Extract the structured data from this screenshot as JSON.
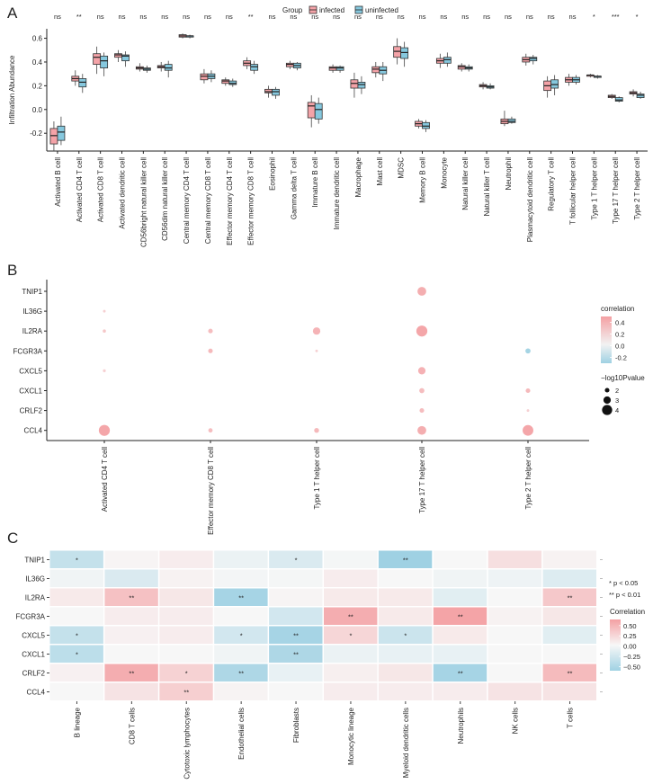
{
  "panel_labels": {
    "a": "A",
    "b": "B",
    "c": "C"
  },
  "colors": {
    "infected": "#f4a3a8",
    "uninfected": "#86c8de",
    "positive": "#f4a0a3",
    "negative": "#9fd1e3",
    "neutral": "#f7f7f7"
  },
  "chart_data": [
    {
      "type": "box",
      "panel": "A",
      "ylabel": "Infiltration Abundance",
      "ylim": [
        -0.35,
        0.68
      ],
      "yticks": [
        -0.2,
        0.0,
        0.2,
        0.4,
        0.6
      ],
      "ytick_labels": [
        "-0.2",
        "0.0",
        "0.2",
        "0.4",
        "0.6"
      ],
      "legend": {
        "title": "Group",
        "entries": [
          "infected",
          "uninfected"
        ],
        "position": "top"
      },
      "categories": [
        "Activated B cell",
        "Activated CD4 T cell",
        "Activated CD8 T cell",
        "Activated dendritic cell",
        "CD56bright natural killer cell",
        "CD56dim natural killer cell",
        "Central memory CD4 T cell",
        "Central memory CD8 T cell",
        "Effector memory CD4 T cell",
        "Effector memory CD8 T cell",
        "Eosinophil",
        "Gamma delta T cell",
        "Immature  B cell",
        "Immature dendritic cell",
        "Macrophage",
        "Mast cell",
        "MDSC",
        "Memory B cell",
        "Monocyte",
        "Natural killer cell",
        "Natural killer T cell",
        "Neutrophil",
        "Plasmacytoid dendritic cell",
        "Regulatory T cell",
        "T follicular helper cell",
        "Type 1 T helper cell",
        "Type 17 T helper cell",
        "Type 2 T helper cell"
      ],
      "significance": [
        "ns",
        "**",
        "ns",
        "ns",
        "ns",
        "ns",
        "ns",
        "ns",
        "ns",
        "**",
        "ns",
        "ns",
        "ns",
        "ns",
        "ns",
        "ns",
        "ns",
        "ns",
        "ns",
        "ns",
        "ns",
        "ns",
        "ns",
        "ns",
        "ns",
        "*",
        "***",
        "*"
      ],
      "series": [
        {
          "name": "infected",
          "boxes": [
            [
              -0.35,
              -0.29,
              -0.22,
              -0.16,
              -0.1
            ],
            [
              0.2,
              0.24,
              0.26,
              0.28,
              0.33
            ],
            [
              0.3,
              0.38,
              0.44,
              0.47,
              0.53
            ],
            [
              0.4,
              0.44,
              0.46,
              0.47,
              0.5
            ],
            [
              0.32,
              0.34,
              0.35,
              0.36,
              0.39
            ],
            [
              0.32,
              0.35,
              0.36,
              0.37,
              0.4
            ],
            [
              0.6,
              0.61,
              0.62,
              0.63,
              0.64
            ],
            [
              0.22,
              0.25,
              0.28,
              0.3,
              0.34
            ],
            [
              0.2,
              0.22,
              0.24,
              0.25,
              0.27
            ],
            [
              0.34,
              0.37,
              0.39,
              0.41,
              0.44
            ],
            [
              0.1,
              0.14,
              0.15,
              0.17,
              0.2
            ],
            [
              0.34,
              0.36,
              0.38,
              0.39,
              0.41
            ],
            [
              -0.15,
              -0.07,
              0.03,
              0.06,
              0.12
            ],
            [
              0.31,
              0.33,
              0.35,
              0.36,
              0.38
            ],
            [
              0.1,
              0.18,
              0.22,
              0.25,
              0.31
            ],
            [
              0.27,
              0.31,
              0.34,
              0.36,
              0.4
            ],
            [
              0.38,
              0.44,
              0.49,
              0.53,
              0.6
            ],
            [
              -0.16,
              -0.14,
              -0.12,
              -0.1,
              -0.08
            ],
            [
              0.35,
              0.39,
              0.41,
              0.43,
              0.47
            ],
            [
              0.32,
              0.34,
              0.36,
              0.37,
              0.39
            ],
            [
              0.17,
              0.19,
              0.2,
              0.21,
              0.23
            ],
            [
              -0.14,
              -0.12,
              -0.1,
              -0.08,
              -0.01
            ],
            [
              0.37,
              0.4,
              0.42,
              0.44,
              0.47
            ],
            [
              0.1,
              0.16,
              0.2,
              0.24,
              0.28
            ],
            [
              0.2,
              0.23,
              0.25,
              0.27,
              0.3
            ],
            [
              0.27,
              0.28,
              0.29,
              0.29,
              0.3
            ],
            [
              0.09,
              0.1,
              0.11,
              0.12,
              0.13
            ],
            [
              0.11,
              0.13,
              0.14,
              0.15,
              0.17
            ]
          ]
        },
        {
          "name": "uninfected",
          "boxes": [
            [
              -0.3,
              -0.26,
              -0.19,
              -0.14,
              -0.06
            ],
            [
              0.14,
              0.19,
              0.23,
              0.26,
              0.3
            ],
            [
              0.28,
              0.35,
              0.41,
              0.45,
              0.48
            ],
            [
              0.36,
              0.41,
              0.45,
              0.46,
              0.49
            ],
            [
              0.31,
              0.33,
              0.34,
              0.35,
              0.37
            ],
            [
              0.27,
              0.33,
              0.35,
              0.38,
              0.41
            ],
            [
              0.6,
              0.61,
              0.62,
              0.62,
              0.63
            ],
            [
              0.23,
              0.26,
              0.28,
              0.3,
              0.33
            ],
            [
              0.19,
              0.21,
              0.22,
              0.24,
              0.26
            ],
            [
              0.3,
              0.33,
              0.36,
              0.38,
              0.41
            ],
            [
              0.09,
              0.12,
              0.15,
              0.17,
              0.19
            ],
            [
              0.33,
              0.35,
              0.37,
              0.39,
              0.4
            ],
            [
              -0.12,
              -0.08,
              0.0,
              0.05,
              0.1
            ],
            [
              0.31,
              0.33,
              0.35,
              0.36,
              0.37
            ],
            [
              0.13,
              0.18,
              0.21,
              0.23,
              0.28
            ],
            [
              0.24,
              0.3,
              0.33,
              0.36,
              0.4
            ],
            [
              0.36,
              0.43,
              0.48,
              0.52,
              0.57
            ],
            [
              -0.19,
              -0.16,
              -0.14,
              -0.11,
              -0.09
            ],
            [
              0.36,
              0.39,
              0.42,
              0.44,
              0.48
            ],
            [
              0.32,
              0.34,
              0.35,
              0.36,
              0.38
            ],
            [
              0.17,
              0.18,
              0.19,
              0.2,
              0.22
            ],
            [
              -0.12,
              -0.11,
              -0.1,
              -0.08,
              -0.06
            ],
            [
              0.38,
              0.41,
              0.43,
              0.44,
              0.46
            ],
            [
              0.12,
              0.18,
              0.21,
              0.25,
              0.29
            ],
            [
              0.21,
              0.23,
              0.25,
              0.27,
              0.29
            ],
            [
              0.26,
              0.27,
              0.28,
              0.28,
              0.29
            ],
            [
              0.06,
              0.07,
              0.08,
              0.1,
              0.11
            ],
            [
              0.09,
              0.1,
              0.12,
              0.13,
              0.15
            ]
          ]
        }
      ]
    },
    {
      "type": "scatter",
      "panel": "B",
      "subtype": "dot-plot",
      "x_categories": [
        "Activated CD4 T cell",
        "Effector memory CD8 T cell",
        "Type 1 T helper cell",
        "Type 17 T helper cell",
        "Type 2 T helper cell"
      ],
      "y_categories": [
        "TNIP1",
        "IL36G",
        "IL2RA",
        "FCGR3A",
        "CXCL5",
        "CXCL1",
        "CRLF2",
        "CCL4"
      ],
      "points": [
        {
          "x": "Activated CD4 T cell",
          "y": "IL36G",
          "correlation": 0.2,
          "neglog10p": 1.3
        },
        {
          "x": "Activated CD4 T cell",
          "y": "IL2RA",
          "correlation": 0.25,
          "neglog10p": 1.5
        },
        {
          "x": "Activated CD4 T cell",
          "y": "CXCL5",
          "correlation": 0.2,
          "neglog10p": 1.4
        },
        {
          "x": "Activated CD4 T cell",
          "y": "CCL4",
          "correlation": 0.42,
          "neglog10p": 4.3
        },
        {
          "x": "Effector memory CD8 T cell",
          "y": "IL2RA",
          "correlation": 0.3,
          "neglog10p": 2.0
        },
        {
          "x": "Effector memory CD8 T cell",
          "y": "FCGR3A",
          "correlation": 0.32,
          "neglog10p": 2.0
        },
        {
          "x": "Effector memory CD8 T cell",
          "y": "CCL4",
          "correlation": 0.3,
          "neglog10p": 1.9
        },
        {
          "x": "Type 1 T helper cell",
          "y": "IL2RA",
          "correlation": 0.35,
          "neglog10p": 3.0
        },
        {
          "x": "Type 1 T helper cell",
          "y": "FCGR3A",
          "correlation": 0.2,
          "neglog10p": 1.3
        },
        {
          "x": "Type 1 T helper cell",
          "y": "CCL4",
          "correlation": 0.32,
          "neglog10p": 2.1
        },
        {
          "x": "Type 17 T helper cell",
          "y": "TNIP1",
          "correlation": 0.38,
          "neglog10p": 3.5
        },
        {
          "x": "Type 17 T helper cell",
          "y": "IL2RA",
          "correlation": 0.42,
          "neglog10p": 4.3
        },
        {
          "x": "Type 17 T helper cell",
          "y": "CXCL5",
          "correlation": 0.36,
          "neglog10p": 3.0
        },
        {
          "x": "Type 17 T helper cell",
          "y": "CXCL1",
          "correlation": 0.3,
          "neglog10p": 2.2
        },
        {
          "x": "Type 17 T helper cell",
          "y": "CRLF2",
          "correlation": 0.3,
          "neglog10p": 2.0
        },
        {
          "x": "Type 17 T helper cell",
          "y": "CCL4",
          "correlation": 0.38,
          "neglog10p": 3.5
        },
        {
          "x": "Type 2 T helper cell",
          "y": "FCGR3A",
          "correlation": -0.28,
          "neglog10p": 2.2
        },
        {
          "x": "Type 2 T helper cell",
          "y": "CXCL1",
          "correlation": 0.32,
          "neglog10p": 2.0
        },
        {
          "x": "Type 2 T helper cell",
          "y": "CRLF2",
          "correlation": 0.2,
          "neglog10p": 1.3
        },
        {
          "x": "Type 2 T helper cell",
          "y": "CCL4",
          "correlation": 0.42,
          "neglog10p": 4.2
        }
      ],
      "color_legend": {
        "title": "correlation",
        "range": [
          -0.3,
          0.5
        ],
        "ticks": [
          0.4,
          0.2,
          0.0,
          -0.2
        ],
        "tick_labels": [
          "0.4",
          "0.2",
          "0.0",
          "-0.2"
        ]
      },
      "size_legend": {
        "title": "−log10Pvalue",
        "values": [
          2,
          3,
          4
        ],
        "labels": [
          "2",
          "3",
          "4"
        ]
      }
    },
    {
      "type": "heatmap",
      "panel": "C",
      "x_categories": [
        "B lineage",
        "CD8 T cells",
        "Cytotoxic lymphocytes",
        "Endothelial cells",
        "Fibroblasts",
        "Monocytic lineage",
        "Myeloid dendritic cells",
        "Neutrophils",
        "NK cells",
        "T cells"
      ],
      "y_categories": [
        "TNIP1",
        "IL36G",
        "IL2RA",
        "FCGR3A",
        "CXCL5",
        "CXCL1",
        "CRLF2",
        "CCL4"
      ],
      "values": [
        [
          -0.35,
          0.02,
          0.08,
          -0.08,
          -0.2,
          -0.02,
          -0.6,
          0.0,
          0.18,
          0.04
        ],
        [
          -0.05,
          -0.2,
          0.04,
          -0.03,
          -0.02,
          0.08,
          0.0,
          -0.05,
          -0.06,
          -0.18
        ],
        [
          0.1,
          0.4,
          0.12,
          -0.55,
          0.02,
          0.1,
          0.1,
          -0.15,
          0.0,
          0.35
        ],
        [
          0.0,
          0.08,
          0.08,
          0.0,
          -0.25,
          0.55,
          0.1,
          0.62,
          0.04,
          0.12
        ],
        [
          -0.35,
          0.05,
          0.08,
          -0.25,
          -0.55,
          0.25,
          -0.3,
          0.1,
          0.0,
          -0.15
        ],
        [
          -0.4,
          0.0,
          0.0,
          -0.05,
          -0.5,
          -0.08,
          -0.1,
          -0.1,
          0.0,
          0.0
        ],
        [
          0.05,
          0.55,
          0.28,
          -0.5,
          -0.1,
          0.06,
          0.12,
          -0.55,
          0.0,
          0.45
        ],
        [
          0.0,
          0.15,
          0.3,
          0.03,
          0.0,
          0.08,
          0.08,
          0.08,
          0.15,
          0.15
        ]
      ],
      "annotations": [
        [
          "*",
          "",
          "",
          "",
          "*",
          "",
          "**",
          "",
          "",
          ""
        ],
        [
          "",
          "",
          "",
          "",
          "",
          "",
          "",
          "",
          "",
          ""
        ],
        [
          "",
          "**",
          "",
          "**",
          "",
          "",
          "",
          "",
          "",
          "**"
        ],
        [
          "",
          "",
          "",
          "",
          "",
          "**",
          "",
          "**",
          "",
          ""
        ],
        [
          "*",
          "",
          "",
          "*",
          "**",
          "*",
          "*",
          "",
          "",
          ""
        ],
        [
          "*",
          "",
          "",
          "",
          "**",
          "",
          "",
          "",
          "",
          ""
        ],
        [
          "",
          "**",
          "*",
          "**",
          "",
          "",
          "",
          "**",
          "",
          "**"
        ],
        [
          "",
          "",
          "**",
          "",
          "",
          "",
          "",
          "",
          "",
          ""
        ]
      ],
      "sig_legend": [
        "* p < 0.05",
        "** p < 0.01"
      ],
      "color_legend": {
        "title": "Correlation",
        "range": [
          -0.6,
          0.65
        ],
        "ticks": [
          0.5,
          0.25,
          0.0,
          -0.25,
          -0.5
        ],
        "tick_labels": [
          "0.50",
          "0.25",
          "0.00",
          "−0.25",
          "−0.50"
        ]
      }
    }
  ]
}
